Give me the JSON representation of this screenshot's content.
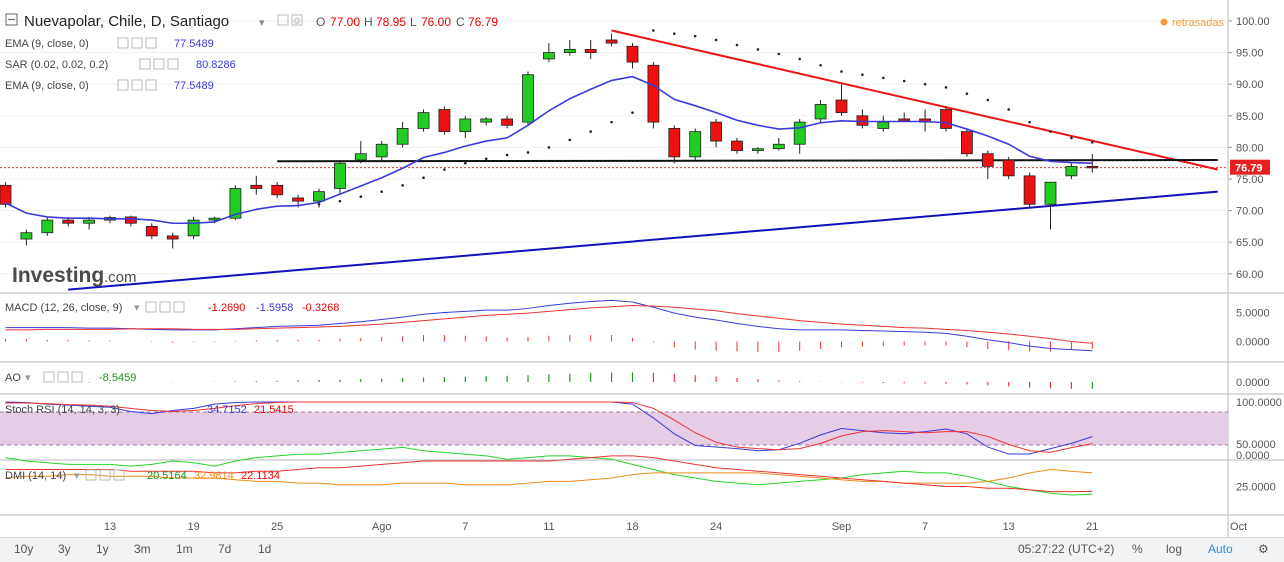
{
  "header": {
    "symbol": "Nuevapolar, Chile, D, Santiago",
    "o_label": "O",
    "o": "77.00",
    "h_label": "H",
    "h": "78.95",
    "l_label": "L",
    "l": "76.00",
    "c_label": "C",
    "c": "76.79",
    "delayed_label": "retrasadas",
    "logo_text": "Investing",
    "logo_suffix": ".com"
  },
  "overlays": [
    {
      "label": "EMA (9, close, 0)",
      "value": "77.5489",
      "color": "#3a3adb"
    },
    {
      "label": "SAR (0.02, 0.02, 0.2)",
      "value": "80.8286",
      "color": "#3a3adb"
    },
    {
      "label": "EMA (9, close, 0)",
      "value": "77.5489",
      "color": "#3a3adb"
    }
  ],
  "last_price_label": "76.79",
  "panes": {
    "macd": {
      "label": "MACD (12, 26, close, 9)",
      "v1": "-1.2690",
      "v2": "-1.5958",
      "v3": "-0.3268"
    },
    "ao": {
      "label": "AO",
      "v1": "-8.5459"
    },
    "stoch": {
      "label": "Stoch RSI (14, 14, 3, 3)",
      "v1": "34.7152",
      "v2": "21.5415"
    },
    "dmi": {
      "label": "DMI (14, 14)",
      "v1": "20.5164",
      "v2": "32.9814",
      "v3": "22.1134"
    }
  },
  "price_axis_ticks": [
    "100.00",
    "95.00",
    "90.00",
    "85.00",
    "80.00",
    "75.00",
    "70.00",
    "65.00",
    "60.00"
  ],
  "macd_axis_ticks": [
    "5.0000",
    "0.0000"
  ],
  "ao_axis_ticks": [
    "0.0000"
  ],
  "stoch_axis_ticks": [
    "100.0000",
    "0.0000"
  ],
  "dmi_axis_ticks": [
    "50.0000",
    "25.0000"
  ],
  "time_labels": [
    {
      "t": 5,
      "label": "13"
    },
    {
      "t": 9,
      "label": "19"
    },
    {
      "t": 13,
      "label": "25"
    },
    {
      "t": 18,
      "label": "Ago"
    },
    {
      "t": 22,
      "label": "7"
    },
    {
      "t": 26,
      "label": "11"
    },
    {
      "t": 30,
      "label": "18"
    },
    {
      "t": 34,
      "label": "24"
    },
    {
      "t": 40,
      "label": "Sep"
    },
    {
      "t": 44,
      "label": "7"
    },
    {
      "t": 48,
      "label": "13"
    },
    {
      "t": 52,
      "label": "21"
    },
    {
      "t": 59,
      "label": "Oct"
    }
  ],
  "bottom_bar": {
    "timeframes": [
      "10y",
      "3y",
      "1y",
      "3m",
      "1m",
      "7d",
      "1d"
    ],
    "clock": "05:27:22",
    "tz": "(UTC+2)",
    "percent": "%",
    "log": "log",
    "auto": "Auto"
  },
  "colors": {
    "up": "#22cc22",
    "down": "#ee1111",
    "ema": "#3a3adb",
    "trend_red": "#ee1111",
    "trend_blue": "#1111bb",
    "stoch_band": "#e6cde6"
  },
  "chart_data": {
    "type": "candlestick",
    "candles": [
      {
        "t": 0,
        "o": 74.0,
        "h": 74.5,
        "l": 70.5,
        "c": 71.0
      },
      {
        "t": 1,
        "o": 65.5,
        "h": 67.0,
        "l": 64.5,
        "c": 66.5
      },
      {
        "t": 2,
        "o": 66.5,
        "h": 69.0,
        "l": 66.0,
        "c": 68.5
      },
      {
        "t": 3,
        "o": 68.5,
        "h": 69.0,
        "l": 67.5,
        "c": 68.0
      },
      {
        "t": 4,
        "o": 68.0,
        "h": 69.0,
        "l": 67.0,
        "c": 68.5
      },
      {
        "t": 5,
        "o": 68.5,
        "h": 69.2,
        "l": 68.0,
        "c": 68.9
      },
      {
        "t": 6,
        "o": 69.0,
        "h": 69.2,
        "l": 67.5,
        "c": 68.0
      },
      {
        "t": 7,
        "o": 67.5,
        "h": 68.0,
        "l": 65.5,
        "c": 66.0
      },
      {
        "t": 8,
        "o": 66.0,
        "h": 66.5,
        "l": 64.0,
        "c": 65.5
      },
      {
        "t": 9,
        "o": 66.0,
        "h": 69.0,
        "l": 65.5,
        "c": 68.5
      },
      {
        "t": 10,
        "o": 68.5,
        "h": 69.0,
        "l": 68.0,
        "c": 68.8
      },
      {
        "t": 11,
        "o": 68.8,
        "h": 74.0,
        "l": 68.5,
        "c": 73.5
      },
      {
        "t": 12,
        "o": 74.0,
        "h": 75.5,
        "l": 72.5,
        "c": 73.5
      },
      {
        "t": 13,
        "o": 74.0,
        "h": 74.5,
        "l": 72.0,
        "c": 72.5
      },
      {
        "t": 14,
        "o": 72.0,
        "h": 72.5,
        "l": 70.5,
        "c": 71.5
      },
      {
        "t": 15,
        "o": 71.5,
        "h": 73.5,
        "l": 70.5,
        "c": 73.0
      },
      {
        "t": 16,
        "o": 73.5,
        "h": 78.0,
        "l": 72.5,
        "c": 77.5
      },
      {
        "t": 17,
        "o": 78.0,
        "h": 81.0,
        "l": 77.5,
        "c": 79.0
      },
      {
        "t": 18,
        "o": 78.5,
        "h": 81.0,
        "l": 78.0,
        "c": 80.5
      },
      {
        "t": 19,
        "o": 80.5,
        "h": 84.0,
        "l": 80.0,
        "c": 83.0
      },
      {
        "t": 20,
        "o": 83.0,
        "h": 86.0,
        "l": 82.5,
        "c": 85.5
      },
      {
        "t": 21,
        "o": 86.0,
        "h": 86.5,
        "l": 82.0,
        "c": 82.5
      },
      {
        "t": 22,
        "o": 82.5,
        "h": 85.0,
        "l": 81.5,
        "c": 84.5
      },
      {
        "t": 23,
        "o": 84.0,
        "h": 84.8,
        "l": 83.5,
        "c": 84.5
      },
      {
        "t": 24,
        "o": 84.5,
        "h": 85.0,
        "l": 83.0,
        "c": 83.5
      },
      {
        "t": 25,
        "o": 84.0,
        "h": 92.0,
        "l": 83.5,
        "c": 91.5
      },
      {
        "t": 26,
        "o": 94.0,
        "h": 96.5,
        "l": 93.5,
        "c": 95.0
      },
      {
        "t": 27,
        "o": 95.0,
        "h": 97.0,
        "l": 94.5,
        "c": 95.5
      },
      {
        "t": 28,
        "o": 95.5,
        "h": 97.0,
        "l": 94.0,
        "c": 95.0
      },
      {
        "t": 29,
        "o": 97.0,
        "h": 98.0,
        "l": 96.0,
        "c": 96.5
      },
      {
        "t": 30,
        "o": 96.0,
        "h": 96.5,
        "l": 92.5,
        "c": 93.5
      },
      {
        "t": 31,
        "o": 93.0,
        "h": 93.5,
        "l": 83.0,
        "c": 84.0
      },
      {
        "t": 32,
        "o": 83.0,
        "h": 83.5,
        "l": 77.5,
        "c": 78.5
      },
      {
        "t": 33,
        "o": 78.5,
        "h": 83.0,
        "l": 78.0,
        "c": 82.5
      },
      {
        "t": 34,
        "o": 84.0,
        "h": 84.5,
        "l": 80.0,
        "c": 81.0
      },
      {
        "t": 35,
        "o": 81.0,
        "h": 81.5,
        "l": 79.0,
        "c": 79.5
      },
      {
        "t": 36,
        "o": 79.5,
        "h": 80.0,
        "l": 79.0,
        "c": 79.8
      },
      {
        "t": 37,
        "o": 79.8,
        "h": 81.5,
        "l": 79.5,
        "c": 80.5
      },
      {
        "t": 38,
        "o": 80.5,
        "h": 84.5,
        "l": 79.0,
        "c": 84.0
      },
      {
        "t": 39,
        "o": 84.5,
        "h": 87.5,
        "l": 84.0,
        "c": 86.8
      },
      {
        "t": 40,
        "o": 87.5,
        "h": 90.0,
        "l": 85.0,
        "c": 85.5
      },
      {
        "t": 41,
        "o": 85.0,
        "h": 86.0,
        "l": 83.0,
        "c": 83.5
      },
      {
        "t": 42,
        "o": 83.0,
        "h": 85.0,
        "l": 82.5,
        "c": 84.0
      },
      {
        "t": 43,
        "o": 84.5,
        "h": 85.5,
        "l": 84.0,
        "c": 84.2
      },
      {
        "t": 44,
        "o": 84.5,
        "h": 86.0,
        "l": 82.5,
        "c": 84.0
      },
      {
        "t": 45,
        "o": 86.0,
        "h": 86.5,
        "l": 82.5,
        "c": 83.0
      },
      {
        "t": 46,
        "o": 82.5,
        "h": 83.0,
        "l": 78.5,
        "c": 79.0
      },
      {
        "t": 47,
        "o": 79.0,
        "h": 79.5,
        "l": 75.0,
        "c": 77.0
      },
      {
        "t": 48,
        "o": 78.0,
        "h": 78.5,
        "l": 75.0,
        "c": 75.5
      },
      {
        "t": 49,
        "o": 75.5,
        "h": 76.0,
        "l": 70.5,
        "c": 71.0
      },
      {
        "t": 50,
        "o": 71.0,
        "h": 74.5,
        "l": 67.0,
        "c": 74.5
      },
      {
        "t": 51,
        "o": 75.5,
        "h": 77.5,
        "l": 75.0,
        "c": 77.0
      },
      {
        "t": 52,
        "o": 77.0,
        "h": 78.95,
        "l": 76.0,
        "c": 76.79
      }
    ],
    "ema": [
      71.2,
      69.6,
      69.0,
      68.8,
      68.8,
      68.7,
      68.7,
      68.5,
      68.0,
      68.0,
      68.2,
      69.4,
      70.2,
      70.7,
      70.8,
      71.3,
      72.6,
      73.9,
      75.2,
      76.7,
      78.4,
      79.2,
      80.2,
      81.0,
      81.5,
      83.5,
      85.8,
      87.7,
      89.2,
      90.6,
      91.2,
      89.8,
      87.6,
      86.6,
      85.5,
      84.3,
      83.5,
      82.9,
      83.1,
      83.9,
      84.2,
      84.1,
      84.1,
      84.1,
      84.1,
      83.9,
      82.9,
      81.8,
      80.5,
      78.6,
      77.8,
      77.6,
      77.5
    ],
    "sar": [
      {
        "t": 15,
        "v": 71.0
      },
      {
        "t": 16,
        "v": 71.5
      },
      {
        "t": 17,
        "v": 72.2
      },
      {
        "t": 18,
        "v": 73.0
      },
      {
        "t": 19,
        "v": 74.0
      },
      {
        "t": 20,
        "v": 75.2
      },
      {
        "t": 21,
        "v": 76.5
      },
      {
        "t": 22,
        "v": 77.5
      },
      {
        "t": 23,
        "v": 78.2
      },
      {
        "t": 24,
        "v": 78.8
      },
      {
        "t": 25,
        "v": 79.2
      },
      {
        "t": 26,
        "v": 80.0
      },
      {
        "t": 27,
        "v": 81.2
      },
      {
        "t": 28,
        "v": 82.5
      },
      {
        "t": 29,
        "v": 84.0
      },
      {
        "t": 30,
        "v": 85.5
      },
      {
        "t": 31,
        "v": 98.5
      },
      {
        "t": 32,
        "v": 98.0
      },
      {
        "t": 33,
        "v": 97.6
      },
      {
        "t": 34,
        "v": 97.0
      },
      {
        "t": 35,
        "v": 96.2
      },
      {
        "t": 36,
        "v": 95.5
      },
      {
        "t": 37,
        "v": 94.8
      },
      {
        "t": 38,
        "v": 94.0
      },
      {
        "t": 39,
        "v": 93.0
      },
      {
        "t": 40,
        "v": 92.0
      },
      {
        "t": 41,
        "v": 91.5
      },
      {
        "t": 42,
        "v": 91.0
      },
      {
        "t": 43,
        "v": 90.5
      },
      {
        "t": 44,
        "v": 90.0
      },
      {
        "t": 45,
        "v": 89.5
      },
      {
        "t": 46,
        "v": 88.5
      },
      {
        "t": 47,
        "v": 87.5
      },
      {
        "t": 48,
        "v": 86.0
      },
      {
        "t": 49,
        "v": 84.0
      },
      {
        "t": 50,
        "v": 82.5
      },
      {
        "t": 51,
        "v": 81.5
      },
      {
        "t": 52,
        "v": 80.8
      }
    ],
    "trendlines": [
      {
        "color": "red",
        "from": {
          "t": 29,
          "v": 98.5
        },
        "to": {
          "t": 58,
          "v": 76.5
        }
      },
      {
        "color": "black",
        "from": {
          "t": 13,
          "v": 77.8
        },
        "to": {
          "t": 58,
          "v": 78.0
        }
      },
      {
        "color": "blue",
        "from": {
          "t": 3,
          "v": 57.5
        },
        "to": {
          "t": 58,
          "v": 73.0
        }
      }
    ],
    "dotted_price": 76.79,
    "macd": {
      "macd": [
        2.4,
        2.4,
        2.4,
        2.4,
        2.3,
        2.3,
        2.2,
        2.1,
        2.0,
        2.0,
        2.0,
        2.2,
        2.4,
        2.6,
        2.7,
        2.8,
        3.1,
        3.4,
        3.8,
        4.2,
        4.7,
        5.0,
        5.2,
        5.4,
        5.4,
        5.7,
        6.2,
        6.6,
        6.9,
        7.1,
        6.8,
        5.9,
        4.9,
        4.2,
        3.7,
        3.1,
        2.6,
        2.2,
        2.0,
        2.0,
        2.0,
        1.9,
        1.8,
        1.7,
        1.6,
        1.4,
        0.9,
        0.3,
        -0.2,
        -0.8,
        -1.2,
        -1.4,
        -1.6
      ],
      "signal": [
        2.0,
        2.0,
        2.1,
        2.1,
        2.1,
        2.1,
        2.2,
        2.2,
        2.2,
        2.1,
        2.1,
        2.1,
        2.2,
        2.3,
        2.4,
        2.5,
        2.6,
        2.8,
        3.0,
        3.3,
        3.6,
        3.9,
        4.2,
        4.5,
        4.7,
        4.9,
        5.2,
        5.5,
        5.8,
        6.0,
        6.2,
        6.1,
        5.9,
        5.6,
        5.3,
        4.8,
        4.4,
        4.0,
        3.6,
        3.3,
        3.0,
        2.8,
        2.6,
        2.4,
        2.3,
        2.1,
        1.9,
        1.6,
        1.3,
        0.9,
        0.5,
        0.0,
        -0.3
      ],
      "histogram": [
        0.4,
        0.4,
        0.3,
        0.3,
        0.2,
        0.2,
        0.0,
        -0.1,
        -0.2,
        -0.1,
        -0.1,
        0.1,
        0.2,
        0.3,
        0.3,
        0.3,
        0.5,
        0.6,
        0.8,
        0.9,
        1.1,
        1.1,
        1.0,
        0.9,
        0.7,
        0.8,
        1.0,
        1.1,
        1.1,
        1.1,
        0.6,
        -0.2,
        -1.0,
        -1.4,
        -1.6,
        -1.7,
        -1.8,
        -1.8,
        -1.6,
        -1.3,
        -1.0,
        -0.9,
        -0.8,
        -0.7,
        -0.7,
        -0.7,
        -1.0,
        -1.3,
        -1.5,
        -1.7,
        -1.7,
        -1.4,
        -1.3
      ]
    },
    "ao": [
      -0.3,
      -0.4,
      -0.5,
      -0.5,
      -0.6,
      -0.5,
      -0.4,
      -0.3,
      -0.3,
      -0.2,
      0.3,
      0.8,
      1.2,
      1.6,
      2.0,
      2.5,
      3.0,
      3.6,
      4.2,
      4.8,
      5.5,
      6.2,
      6.8,
      7.4,
      7.8,
      8.5,
      9.5,
      10.5,
      11.2,
      11.8,
      12.0,
      11.5,
      10.2,
      8.5,
      6.8,
      5.0,
      3.5,
      2.0,
      1.0,
      0.3,
      -0.4,
      -0.9,
      -1.3,
      -1.6,
      -1.8,
      -2.2,
      -3.0,
      -4.2,
      -5.5,
      -7.0,
      -8.0,
      -8.5,
      -8.5
    ],
    "stoch": {
      "k": [
        100,
        99,
        96,
        94,
        92,
        90,
        82,
        78,
        84,
        88,
        96,
        99,
        100,
        100,
        100,
        100,
        100,
        100,
        100,
        100,
        100,
        100,
        100,
        100,
        100,
        100,
        100,
        100,
        100,
        100,
        96,
        70,
        40,
        18,
        15,
        12,
        8,
        10,
        22,
        38,
        50,
        46,
        42,
        40,
        44,
        49,
        40,
        15,
        2,
        2,
        12,
        22,
        34.7
      ],
      "d": [
        98,
        98,
        97,
        95,
        94,
        92,
        88,
        84,
        82,
        84,
        88,
        93,
        97,
        99,
        100,
        100,
        100,
        100,
        100,
        100,
        100,
        100,
        100,
        100,
        100,
        100,
        100,
        100,
        100,
        100,
        99,
        88,
        66,
        42,
        24,
        15,
        12,
        10,
        12,
        22,
        36,
        44,
        46,
        44,
        42,
        44,
        44,
        35,
        20,
        8,
        5,
        14,
        21.5
      ]
    },
    "dmi": {
      "plus": [
        42,
        40,
        39,
        38,
        38,
        38,
        37,
        38,
        40,
        39,
        37,
        40,
        42,
        43,
        44,
        44,
        45,
        46,
        47,
        48,
        46,
        45,
        44,
        43,
        41,
        42,
        43,
        43,
        42,
        41,
        38,
        35,
        32,
        30,
        28,
        27,
        26,
        27,
        28,
        29,
        30,
        32,
        33,
        34,
        33,
        33,
        31,
        28,
        25,
        23,
        21,
        20,
        20.5
      ],
      "minus": [
        30,
        31,
        31,
        32,
        32,
        31,
        31,
        31,
        30,
        30,
        30,
        29,
        28,
        28,
        27,
        27,
        26,
        26,
        26,
        27,
        27,
        27,
        26,
        26,
        26,
        27,
        28,
        28,
        29,
        30,
        32,
        33,
        33,
        33,
        33,
        33,
        33,
        32,
        31,
        30,
        29,
        28,
        28,
        27,
        27,
        27,
        27,
        28,
        30,
        33,
        35,
        34,
        33.0
      ],
      "adx": [
        35,
        35,
        35,
        35,
        35,
        35,
        34,
        34,
        34,
        34,
        33,
        33,
        34,
        34,
        35,
        36,
        36,
        37,
        38,
        39,
        40,
        40,
        40,
        40,
        40,
        40,
        40,
        41,
        42,
        43,
        43,
        42,
        40,
        38,
        36,
        35,
        34,
        33,
        32,
        31,
        30,
        29,
        28,
        27,
        26,
        25,
        25,
        24,
        24,
        23,
        22,
        22,
        22.1
      ]
    }
  }
}
